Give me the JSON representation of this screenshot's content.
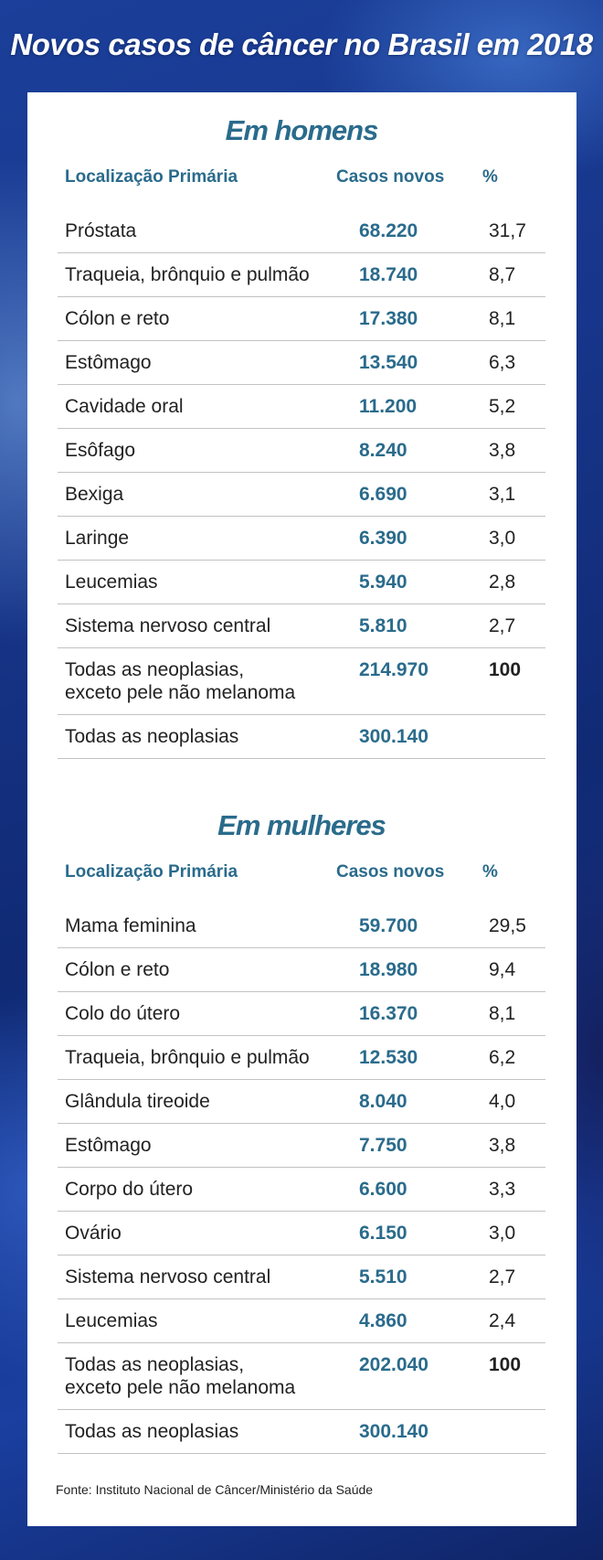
{
  "title": "Novos casos de câncer no Brasil em 2018",
  "headers": {
    "location": "Localização Primária",
    "cases": "Casos novos",
    "pct": "%"
  },
  "men": {
    "title": "Em homens",
    "rows": [
      {
        "name": "Próstata",
        "cases": "68.220",
        "pct": "31,7"
      },
      {
        "name": "Traqueia, brônquio e pulmão",
        "cases": "18.740",
        "pct": "8,7"
      },
      {
        "name": "Cólon e reto",
        "cases": "17.380",
        "pct": "8,1"
      },
      {
        "name": "Estômago",
        "cases": "13.540",
        "pct": "6,3"
      },
      {
        "name": "Cavidade oral",
        "cases": "11.200",
        "pct": "5,2"
      },
      {
        "name": "Esôfago",
        "cases": "8.240",
        "pct": "3,8"
      },
      {
        "name": "Bexiga",
        "cases": "6.690",
        "pct": "3,1"
      },
      {
        "name": "Laringe",
        "cases": "6.390",
        "pct": "3,0"
      },
      {
        "name": "Leucemias",
        "cases": "5.940",
        "pct": "2,8"
      },
      {
        "name": "Sistema nervoso central",
        "cases": "5.810",
        "pct": "2,7"
      }
    ],
    "total_excl": {
      "name_line1": "Todas as neoplasias,",
      "name_line2": "exceto pele não melanoma",
      "cases": "214.970",
      "pct": "100"
    },
    "total_all": {
      "name": "Todas as neoplasias",
      "cases": "300.140"
    }
  },
  "women": {
    "title": "Em mulheres",
    "rows": [
      {
        "name": "Mama feminina",
        "cases": "59.700",
        "pct": "29,5"
      },
      {
        "name": "Cólon e reto",
        "cases": "18.980",
        "pct": "9,4"
      },
      {
        "name": "Colo do útero",
        "cases": "16.370",
        "pct": "8,1"
      },
      {
        "name": "Traqueia, brônquio e pulmão",
        "cases": "12.530",
        "pct": "6,2"
      },
      {
        "name": "Glândula tireoide",
        "cases": "8.040",
        "pct": "4,0"
      },
      {
        "name": "Estômago",
        "cases": "7.750",
        "pct": "3,8"
      },
      {
        "name": "Corpo do útero",
        "cases": "6.600",
        "pct": "3,3"
      },
      {
        "name": "Ovário",
        "cases": "6.150",
        "pct": "3,0"
      },
      {
        "name": "Sistema nervoso central",
        "cases": "5.510",
        "pct": "2,7"
      },
      {
        "name": "Leucemias",
        "cases": "4.860",
        "pct": "2,4"
      }
    ],
    "total_excl": {
      "name_line1": "Todas as neoplasias,",
      "name_line2": "exceto pele não melanoma",
      "cases": "202.040",
      "pct": "100"
    },
    "total_all": {
      "name": "Todas as neoplasias",
      "cases": "300.140"
    }
  },
  "source": "Fonte: Instituto Nacional de Câncer/Ministério da Saúde"
}
